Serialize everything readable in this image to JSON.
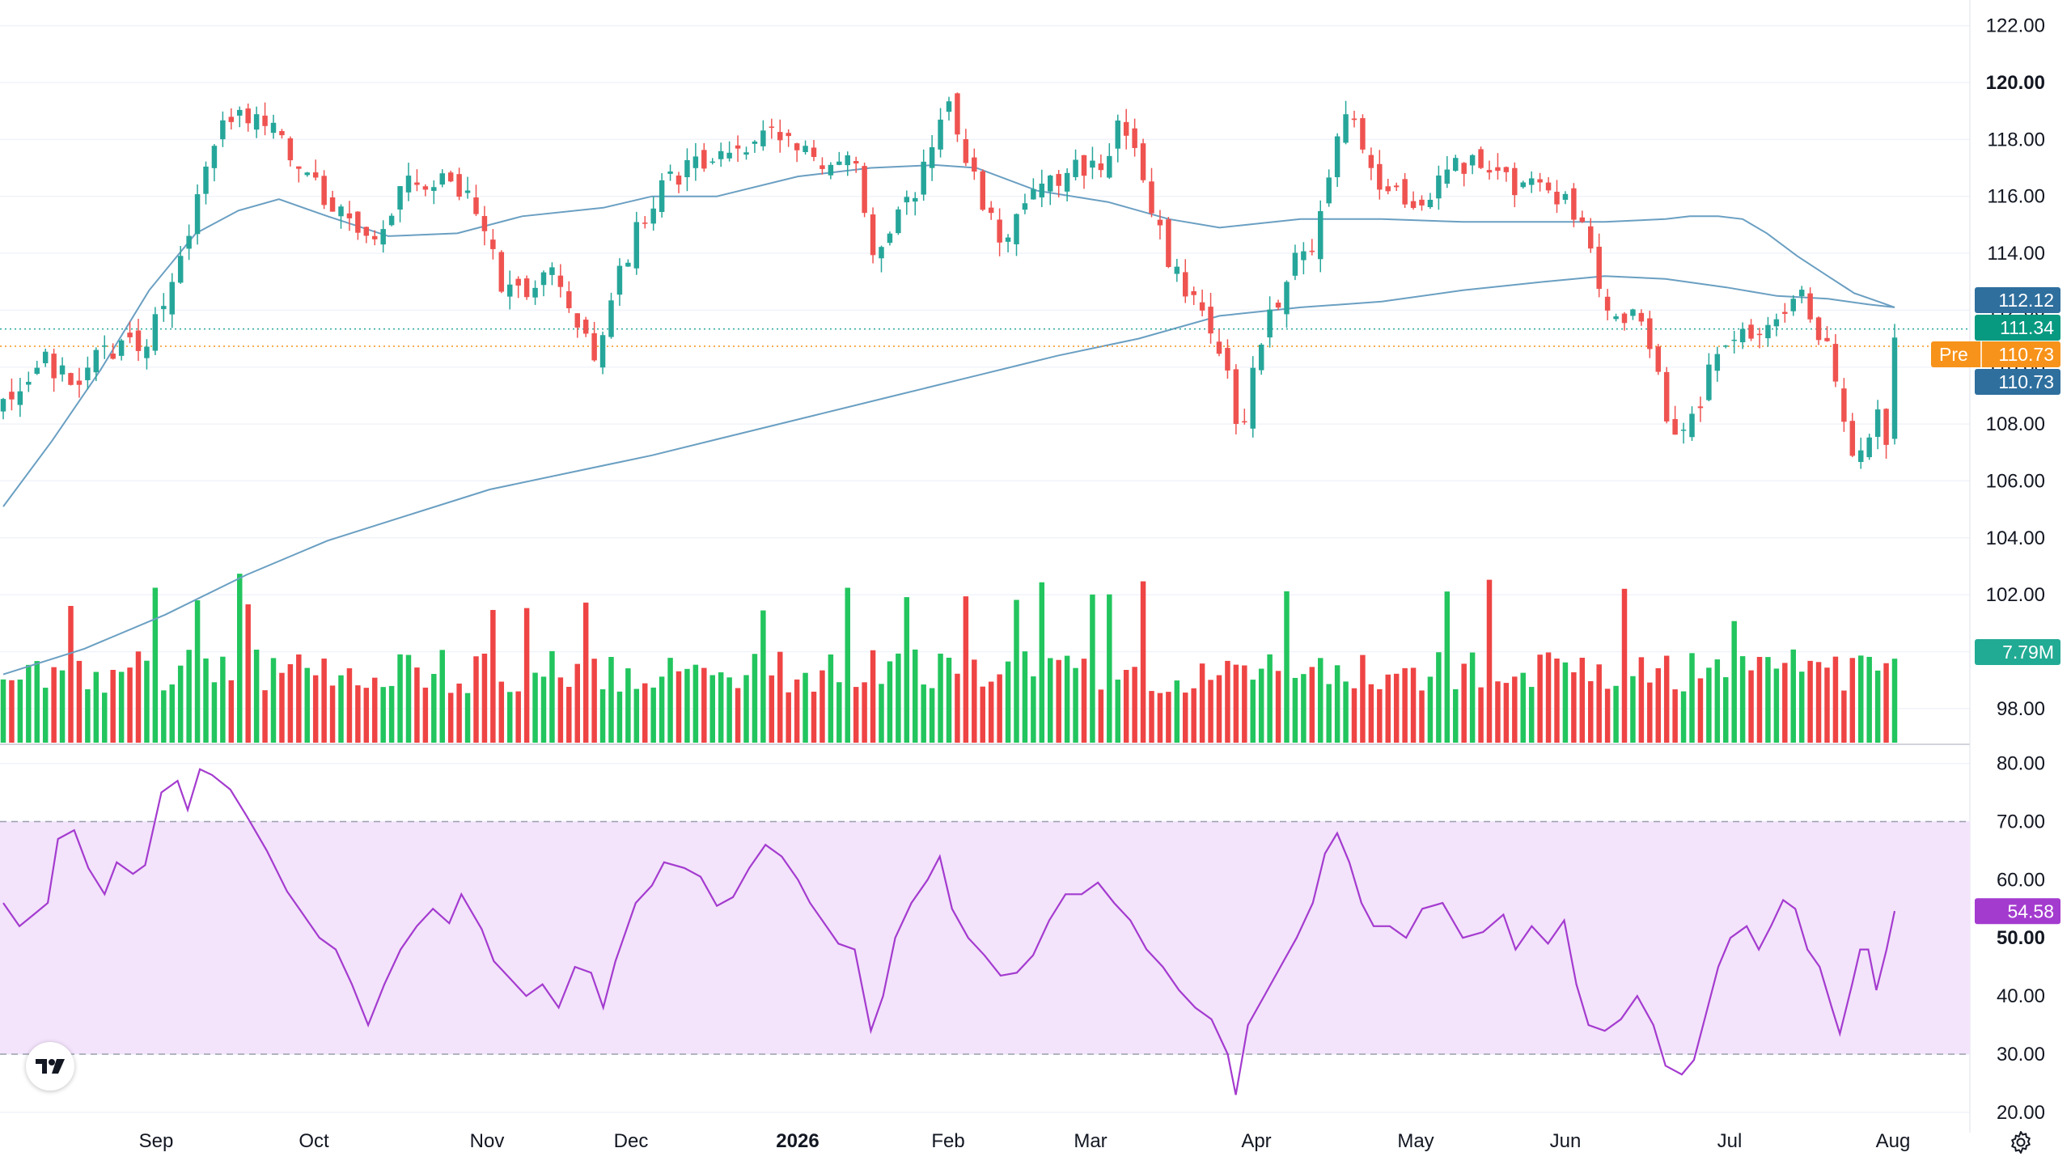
{
  "chart_data": {
    "type": "candlestick",
    "price_axis": {
      "ticks": [
        "122.00",
        "120.00",
        "118.00",
        "116.00",
        "114.00",
        "112.00",
        "110.00",
        "108.00",
        "106.00",
        "104.00",
        "102.00",
        "100.00",
        "98.00"
      ],
      "bold_tick": "120.00",
      "range": [
        96.8,
        122.9
      ]
    },
    "time_axis": {
      "labels": [
        "Sep",
        "Oct",
        "Nov",
        "Dec",
        "2026",
        "Feb",
        "Mar",
        "Apr",
        "May",
        "Jun",
        "Jul",
        "Aug"
      ],
      "bold_label": "2026"
    },
    "badges": [
      {
        "text": "112.12",
        "color": "#2e6f9e"
      },
      {
        "text": "111.34",
        "color": "#089981"
      },
      {
        "prefix": "Pre",
        "text": "110.73",
        "color": "#f7931a"
      },
      {
        "text": "110.73",
        "color": "#2e6f9e"
      },
      {
        "text": "7.79M",
        "color": "#22ab94"
      }
    ],
    "reference_lines": {
      "last_close": 111.34,
      "pre_market": 110.73
    },
    "colors": {
      "up": "#26a69a",
      "down": "#ef5350",
      "vol_up": "#22c55e",
      "vol_down": "#ef4444",
      "ma": "#6a9fc2",
      "rsi": "#a43bcf",
      "rsi_band": "#f3e3fb",
      "pre": "#f7931a"
    },
    "ma_fast": [
      [
        0,
        105.1
      ],
      [
        24,
        107.4
      ],
      [
        48,
        109.9
      ],
      [
        72,
        112.7
      ],
      [
        95,
        114.7
      ],
      [
        116,
        115.5
      ],
      [
        136,
        115.9
      ],
      [
        160,
        115.3
      ],
      [
        190,
        114.6
      ],
      [
        224,
        114.7
      ],
      [
        256,
        115.3
      ],
      [
        296,
        115.6
      ],
      [
        320,
        116.0
      ],
      [
        352,
        116.0
      ],
      [
        392,
        116.7
      ],
      [
        428,
        117.0
      ],
      [
        460,
        117.1
      ],
      [
        480,
        117.0
      ],
      [
        510,
        116.2
      ],
      [
        545,
        115.8
      ],
      [
        575,
        115.2
      ],
      [
        600,
        114.9
      ],
      [
        640,
        115.2
      ],
      [
        680,
        115.2
      ],
      [
        720,
        115.1
      ],
      [
        760,
        115.1
      ],
      [
        790,
        115.1
      ],
      [
        820,
        115.2
      ],
      [
        832,
        115.3
      ],
      [
        846,
        115.3
      ],
      [
        858,
        115.2
      ],
      [
        870,
        114.7
      ],
      [
        885,
        113.9
      ],
      [
        900,
        113.2
      ],
      [
        913,
        112.6
      ],
      [
        925,
        112.3
      ],
      [
        933,
        112.1
      ]
    ],
    "ma_slow": [
      [
        0,
        99.2
      ],
      [
        40,
        100.1
      ],
      [
        80,
        101.3
      ],
      [
        120,
        102.7
      ],
      [
        160,
        103.9
      ],
      [
        200,
        104.8
      ],
      [
        240,
        105.7
      ],
      [
        280,
        106.3
      ],
      [
        320,
        106.9
      ],
      [
        360,
        107.6
      ],
      [
        400,
        108.3
      ],
      [
        440,
        109.0
      ],
      [
        480,
        109.7
      ],
      [
        520,
        110.4
      ],
      [
        560,
        111.0
      ],
      [
        600,
        111.8
      ],
      [
        640,
        112.1
      ],
      [
        680,
        112.3
      ],
      [
        720,
        112.7
      ],
      [
        760,
        113.0
      ],
      [
        790,
        113.2
      ],
      [
        820,
        113.1
      ],
      [
        850,
        112.8
      ],
      [
        875,
        112.5
      ],
      [
        900,
        112.4
      ],
      [
        920,
        112.2
      ],
      [
        933,
        112.1
      ]
    ],
    "price_path": [
      [
        0,
        108.5
      ],
      [
        8,
        109.2
      ],
      [
        20,
        110.2
      ],
      [
        34,
        109.6
      ],
      [
        52,
        110.5
      ],
      [
        70,
        111.0
      ],
      [
        82,
        112.6
      ],
      [
        95,
        115.4
      ],
      [
        104,
        118.0
      ],
      [
        114,
        119.0
      ],
      [
        124,
        119.0
      ],
      [
        133,
        118.7
      ],
      [
        140,
        117.5
      ],
      [
        152,
        116.7
      ],
      [
        165,
        115.5
      ],
      [
        176,
        114.5
      ],
      [
        188,
        115.2
      ],
      [
        200,
        116.3
      ],
      [
        210,
        116.4
      ],
      [
        222,
        116.6
      ],
      [
        232,
        115.5
      ],
      [
        246,
        113.0
      ],
      [
        258,
        112.5
      ],
      [
        270,
        113.5
      ],
      [
        282,
        111.5
      ],
      [
        292,
        110.5
      ],
      [
        300,
        112.3
      ],
      [
        312,
        114.9
      ],
      [
        326,
        116.5
      ],
      [
        342,
        117.0
      ],
      [
        354,
        117.2
      ],
      [
        368,
        117.8
      ],
      [
        384,
        118.4
      ],
      [
        396,
        117.7
      ],
      [
        404,
        117.0
      ],
      [
        412,
        117.6
      ],
      [
        420,
        117.2
      ],
      [
        428,
        114.0
      ],
      [
        436,
        114.7
      ],
      [
        446,
        115.8
      ],
      [
        456,
        117.3
      ],
      [
        466,
        119.8
      ],
      [
        474,
        117.5
      ],
      [
        482,
        116.0
      ],
      [
        492,
        114.4
      ],
      [
        504,
        116.0
      ],
      [
        512,
        116.5
      ],
      [
        522,
        116.8
      ],
      [
        532,
        117.0
      ],
      [
        542,
        117.3
      ],
      [
        552,
        118.6
      ],
      [
        562,
        116.8
      ],
      [
        572,
        114.2
      ],
      [
        582,
        112.9
      ],
      [
        592,
        111.6
      ],
      [
        602,
        110.4
      ],
      [
        610,
        107.2
      ],
      [
        618,
        110.2
      ],
      [
        626,
        112.0
      ],
      [
        636,
        113.8
      ],
      [
        646,
        114.2
      ],
      [
        654,
        117.0
      ],
      [
        662,
        118.9
      ],
      [
        668,
        118.4
      ],
      [
        678,
        116.6
      ],
      [
        690,
        115.9
      ],
      [
        700,
        115.8
      ],
      [
        712,
        116.7
      ],
      [
        722,
        117.2
      ],
      [
        734,
        116.7
      ],
      [
        742,
        116.4
      ],
      [
        756,
        116.6
      ],
      [
        766,
        116.1
      ],
      [
        774,
        115.7
      ],
      [
        780,
        114.8
      ],
      [
        788,
        112.4
      ],
      [
        796,
        111.7
      ],
      [
        804,
        111.6
      ],
      [
        812,
        111.0
      ],
      [
        820,
        108.6
      ],
      [
        830,
        107.4
      ],
      [
        840,
        109.4
      ],
      [
        848,
        110.9
      ],
      [
        856,
        111.5
      ],
      [
        866,
        111.3
      ],
      [
        874,
        111.4
      ],
      [
        878,
        111.6
      ],
      [
        886,
        112.7
      ],
      [
        892,
        111.2
      ],
      [
        900,
        111.1
      ],
      [
        906,
        109.2
      ],
      [
        913,
        106.4
      ],
      [
        920,
        107.1
      ],
      [
        925,
        108.3
      ],
      [
        929,
        107.0
      ],
      [
        933,
        111.3
      ]
    ],
    "rsi": {
      "ticks": [
        "80.00",
        "70.00",
        "60.00",
        "50.00",
        "40.00",
        "30.00",
        "20.00"
      ],
      "bold_tick": "50.00",
      "range": [
        16.5,
        83.0
      ],
      "band": [
        30,
        70
      ],
      "badge": "54.58",
      "series": [
        [
          0,
          56.0
        ],
        [
          8,
          52.0
        ],
        [
          15,
          54.0
        ],
        [
          22,
          56.0
        ],
        [
          27,
          67.0
        ],
        [
          35,
          68.5
        ],
        [
          42,
          62.0
        ],
        [
          50,
          57.5
        ],
        [
          56,
          63.0
        ],
        [
          64,
          61.0
        ],
        [
          70,
          62.5
        ],
        [
          78,
          75.0
        ],
        [
          86,
          77.0
        ],
        [
          91,
          72.0
        ],
        [
          97,
          79.0
        ],
        [
          103,
          78.0
        ],
        [
          112,
          75.5
        ],
        [
          120,
          71.0
        ],
        [
          130,
          65.0
        ],
        [
          140,
          58.0
        ],
        [
          146,
          55.0
        ],
        [
          156,
          50.0
        ],
        [
          164,
          48.0
        ],
        [
          172,
          42.0
        ],
        [
          180,
          35.0
        ],
        [
          188,
          42.0
        ],
        [
          196,
          48.0
        ],
        [
          204,
          52.0
        ],
        [
          212,
          55.0
        ],
        [
          220,
          52.5
        ],
        [
          226,
          57.5
        ],
        [
          236,
          51.5
        ],
        [
          242,
          46.0
        ],
        [
          250,
          43.0
        ],
        [
          258,
          40.0
        ],
        [
          266,
          42.0
        ],
        [
          274,
          38.0
        ],
        [
          282,
          45.0
        ],
        [
          290,
          44.0
        ],
        [
          296,
          38.0
        ],
        [
          302,
          46.0
        ],
        [
          312,
          56.0
        ],
        [
          320,
          59.0
        ],
        [
          326,
          63.0
        ],
        [
          336,
          62.0
        ],
        [
          344,
          60.5
        ],
        [
          352,
          55.5
        ],
        [
          360,
          57.0
        ],
        [
          368,
          62.0
        ],
        [
          376,
          66.0
        ],
        [
          384,
          64.0
        ],
        [
          392,
          60.0
        ],
        [
          398,
          56.0
        ],
        [
          406,
          52.0
        ],
        [
          412,
          49.0
        ],
        [
          420,
          48.0
        ],
        [
          428,
          34.0
        ],
        [
          434,
          40.0
        ],
        [
          440,
          50.0
        ],
        [
          448,
          56.0
        ],
        [
          456,
          60.0
        ],
        [
          462,
          64.0
        ],
        [
          468,
          55.0
        ],
        [
          476,
          50.0
        ],
        [
          484,
          47.0
        ],
        [
          492,
          43.5
        ],
        [
          500,
          44.0
        ],
        [
          508,
          47.0
        ],
        [
          516,
          53.0
        ],
        [
          524,
          57.5
        ],
        [
          532,
          57.5
        ],
        [
          540,
          59.5
        ],
        [
          548,
          56.0
        ],
        [
          556,
          53.0
        ],
        [
          564,
          48.0
        ],
        [
          572,
          45.0
        ],
        [
          580,
          41.0
        ],
        [
          588,
          38.0
        ],
        [
          596,
          36.0
        ],
        [
          604,
          30.0
        ],
        [
          608,
          23.0
        ],
        [
          614,
          35.0
        ],
        [
          622,
          40.0
        ],
        [
          630,
          45.0
        ],
        [
          638,
          50.0
        ],
        [
          646,
          56.0
        ],
        [
          652,
          64.5
        ],
        [
          658,
          68.0
        ],
        [
          664,
          63.0
        ],
        [
          670,
          56.0
        ],
        [
          676,
          52.0
        ],
        [
          684,
          52.0
        ],
        [
          692,
          50.0
        ],
        [
          700,
          55.0
        ],
        [
          710,
          56.0
        ],
        [
          720,
          50.0
        ],
        [
          730,
          51.0
        ],
        [
          740,
          54.0
        ],
        [
          746,
          48.0
        ],
        [
          754,
          52.0
        ],
        [
          762,
          49.0
        ],
        [
          770,
          53.0
        ],
        [
          776,
          42.0
        ],
        [
          782,
          35.0
        ],
        [
          790,
          34.0
        ],
        [
          798,
          36.0
        ],
        [
          806,
          40.0
        ],
        [
          814,
          35.0
        ],
        [
          820,
          28.0
        ],
        [
          828,
          26.5
        ],
        [
          834,
          29.0
        ],
        [
          840,
          37.0
        ],
        [
          846,
          45.0
        ],
        [
          852,
          50.0
        ],
        [
          860,
          52.0
        ],
        [
          866,
          48.0
        ],
        [
          872,
          52.0
        ],
        [
          878,
          56.5
        ],
        [
          884,
          55.0
        ],
        [
          890,
          48.0
        ],
        [
          896,
          45.0
        ],
        [
          902,
          38.0
        ],
        [
          906,
          33.5
        ],
        [
          912,
          42.0
        ],
        [
          916,
          48.0
        ],
        [
          920,
          48.0
        ],
        [
          924,
          41.0
        ],
        [
          929,
          48.0
        ],
        [
          933,
          54.6
        ]
      ]
    },
    "volume_baseline": 7.79
  }
}
